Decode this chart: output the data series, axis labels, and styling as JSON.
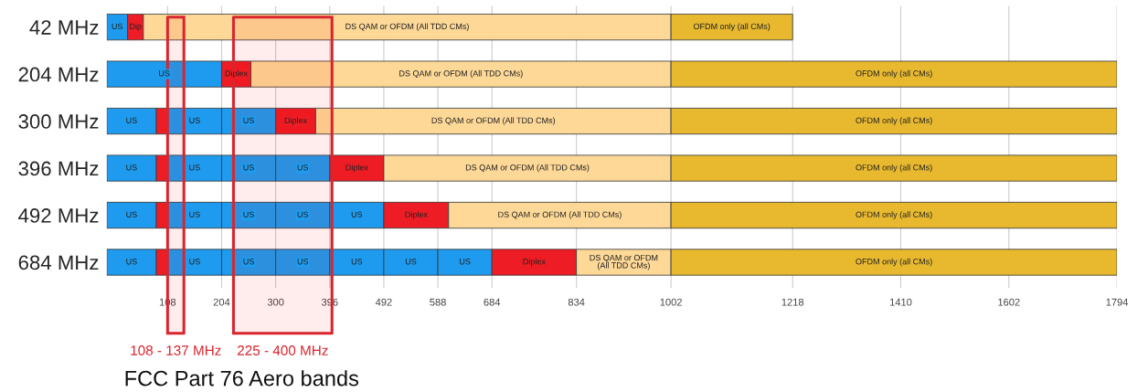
{
  "chart_data": {
    "type": "bar",
    "orientation": "horizontal",
    "stacked": true,
    "categories": [
      "42 MHz",
      "204 MHz",
      "300 MHz",
      "396 MHz",
      "492 MHz",
      "684 MHz"
    ],
    "series": [
      {
        "values": [
          37,
          204,
          88,
          88,
          88,
          88
        ],
        "colors": [
          "#1e9bef",
          "#1e9bef",
          "#1e9bef",
          "#1e9bef",
          "#1e9bef",
          "#1e9bef"
        ],
        "value_labels": [
          "US",
          "US",
          "US",
          "US",
          "US",
          "US"
        ]
      },
      {
        "values": [
          28,
          52,
          20,
          20,
          20,
          20
        ],
        "colors": [
          "#ee1c24",
          "#ee1c24",
          "#ee1c24",
          "#ee1c24",
          "#ee1c24",
          "#ee1c24"
        ],
        "value_labels": [
          "Dip",
          "Diplex",
          null,
          null,
          null,
          null
        ]
      },
      {
        "values": [
          937,
          746,
          96,
          96,
          96,
          96
        ],
        "colors": [
          "#fdd897",
          "#fdd897",
          "#1e9bef",
          "#1e9bef",
          "#1e9bef",
          "#1e9bef"
        ],
        "value_labels": [
          "DS QAM or OFDM (All TDD CMs)",
          "DS QAM or OFDM (All TDD CMs)",
          "US",
          "US",
          "US",
          "US"
        ]
      },
      {
        "values": [
          216,
          792,
          96,
          96,
          96,
          96
        ],
        "colors": [
          "#e8b92f",
          "#e8b92f",
          "#1e9bef",
          "#1e9bef",
          "#1e9bef",
          "#1e9bef"
        ],
        "value_labels": [
          "OFDM only (all CMs)",
          "OFDM only (all CMs)",
          "US",
          "US",
          "US",
          "US"
        ]
      },
      {
        "values": [
          null,
          null,
          71,
          96,
          96,
          96
        ],
        "colors": [
          null,
          null,
          "#ee1c24",
          "#1e9bef",
          "#1e9bef",
          "#1e9bef"
        ],
        "value_labels": [
          null,
          null,
          "Diplex",
          "US",
          "US",
          "US"
        ]
      },
      {
        "values": [
          null,
          null,
          631,
          96,
          96,
          96
        ],
        "colors": [
          null,
          null,
          "#fdd897",
          "#ee1c24",
          "#1e9bef",
          "#1e9bef"
        ],
        "value_labels": [
          null,
          null,
          "DS QAM or OFDM (All TDD CMs)",
          "Diplex",
          "US",
          "US"
        ]
      },
      {
        "values": [
          null,
          null,
          792,
          510,
          115,
          96
        ],
        "colors": [
          null,
          null,
          "#e8b92f",
          "#fdd897",
          "#ee1c24",
          "#1e9bef"
        ],
        "value_labels": [
          null,
          null,
          "OFDM only (all CMs)",
          "DS QAM or OFDM (All TDD CMs)",
          "Diplex",
          "US"
        ]
      },
      {
        "values": [
          null,
          null,
          null,
          792,
          395,
          96
        ],
        "colors": [
          null,
          null,
          null,
          "#e8b92f",
          "#fdd897",
          "#1e9bef"
        ],
        "value_labels": [
          null,
          null,
          null,
          "OFDM only (all CMs)",
          "DS QAM or OFDM (All TDD CMs)",
          "US"
        ]
      },
      {
        "values": [
          null,
          null,
          null,
          null,
          792,
          150
        ],
        "colors": [
          null,
          null,
          null,
          null,
          "#e8b92f",
          "#ee1c24"
        ],
        "value_labels": [
          null,
          null,
          null,
          null,
          "OFDM only (all CMs)",
          "Diplex"
        ]
      },
      {
        "values": [
          null,
          null,
          null,
          null,
          null,
          168
        ],
        "colors": [
          null,
          null,
          null,
          null,
          null,
          "#fdd897"
        ],
        "value_labels": [
          null,
          null,
          null,
          null,
          null,
          "DS QAM or OFDM\n(All TDD CMs)"
        ]
      },
      {
        "values": [
          null,
          null,
          null,
          null,
          null,
          792
        ],
        "colors": [
          null,
          null,
          null,
          null,
          null,
          "#e8b92f"
        ],
        "value_labels": [
          null,
          null,
          null,
          null,
          null,
          "OFDM only (all CMs)"
        ]
      }
    ],
    "xlim": [
      0,
      1794
    ],
    "xticks": [
      108,
      204,
      300,
      396,
      492,
      588,
      684,
      834,
      1002,
      1218,
      1410,
      1602,
      1794
    ],
    "grid": "x",
    "bands": [
      {
        "axis": "x",
        "from": 108,
        "to": 137,
        "label": "108 - 137 MHz",
        "color": "#d9262e"
      },
      {
        "axis": "x",
        "from": 225,
        "to": 400,
        "label": "225 - 400 MHz",
        "color": "#d9262e"
      }
    ],
    "annotations": [
      "FCC Part 76 Aero bands"
    ]
  }
}
